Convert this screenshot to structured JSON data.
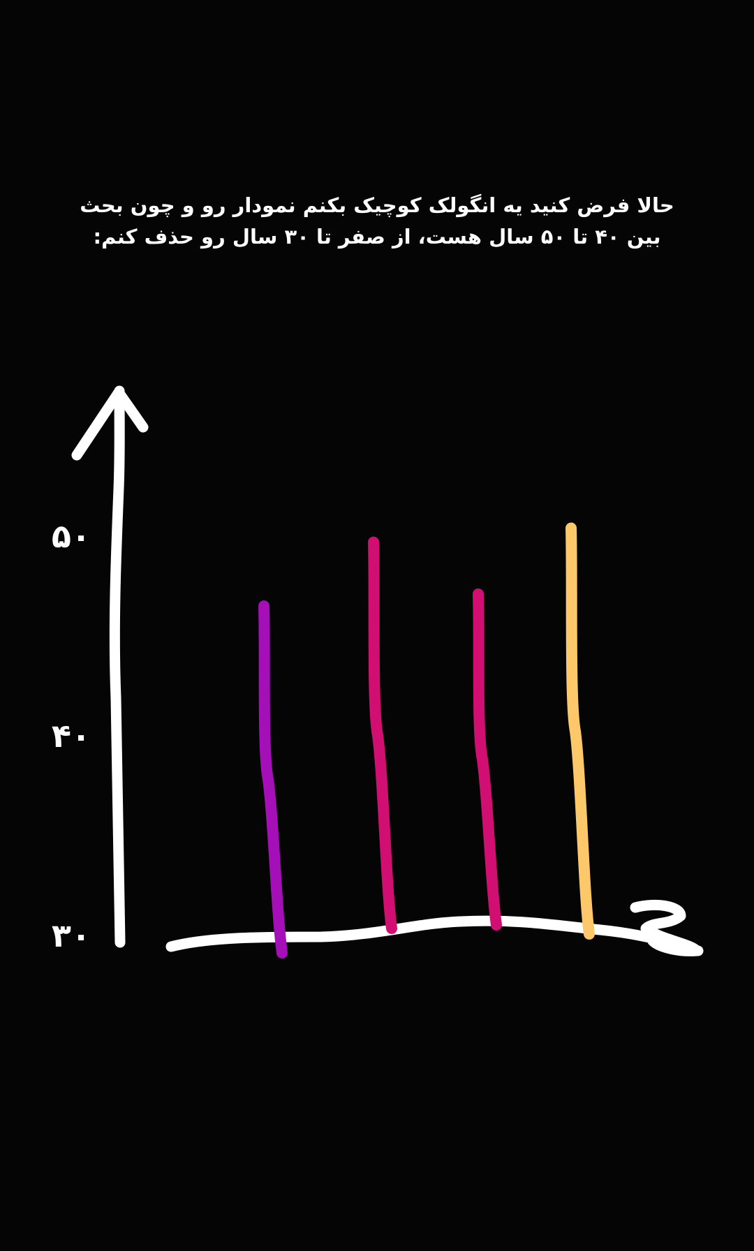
{
  "caption": {
    "line1": "حالا فرض کنید یه انگولک کوچیک بکنم نمودار رو و چون بحث",
    "line2": "بین ۴۰ تا ۵۰ سال هست، از صفر تا ۳۰ سال رو حذف کنم:"
  },
  "chart_data": {
    "type": "bar",
    "style": "hand-drawn",
    "y_tick_labels": [
      "۳۰",
      "۴۰",
      "۵۰"
    ],
    "y_ticks": [
      30,
      40,
      50
    ],
    "ylim": [
      30,
      50
    ],
    "axis_break_marker": true,
    "values": [
      46.5,
      49.7,
      47.1,
      50.4
    ],
    "colors": [
      "#a40fb8",
      "#d10f73",
      "#d10f73",
      "#fcc86a"
    ],
    "axis_color": "#ffffff"
  }
}
